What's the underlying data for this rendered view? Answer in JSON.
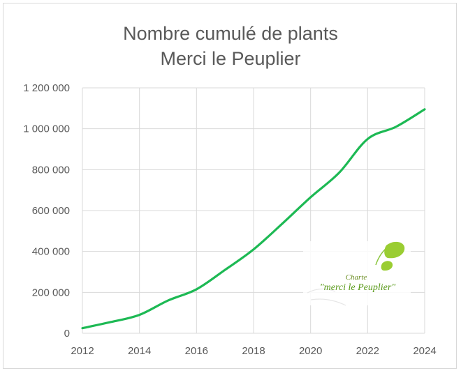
{
  "chart_data": {
    "type": "line",
    "title_line1": "Nombre cumulé de plants",
    "title_line2": "Merci le Peuplier",
    "xlabel": "",
    "ylabel": "",
    "xlim": [
      2012,
      2024
    ],
    "ylim": [
      0,
      1200000
    ],
    "x_ticks": [
      "2012",
      "2014",
      "2016",
      "2018",
      "2020",
      "2022",
      "2024"
    ],
    "y_ticks": [
      "0",
      "200 000",
      "400 000",
      "600 000",
      "800 000",
      "1 000 000",
      "1 200 000"
    ],
    "grid": true,
    "legend": "none",
    "series": [
      {
        "color": "#1db954",
        "x": [
          2012,
          2013,
          2014,
          2015,
          2016,
          2017,
          2018,
          2019,
          2020,
          2021,
          2022,
          2023,
          2024
        ],
        "y": [
          25000,
          55000,
          90000,
          160000,
          215000,
          310000,
          410000,
          535000,
          665000,
          785000,
          950000,
          1010000,
          1095000
        ]
      }
    ]
  },
  "logo": {
    "line1": "Charte",
    "line2": "\"merci le Peuplier\""
  },
  "colors": {
    "line": "#1db954",
    "grid": "#d9d9d9",
    "text": "#595959",
    "logo_leaf": "#9acd32"
  }
}
